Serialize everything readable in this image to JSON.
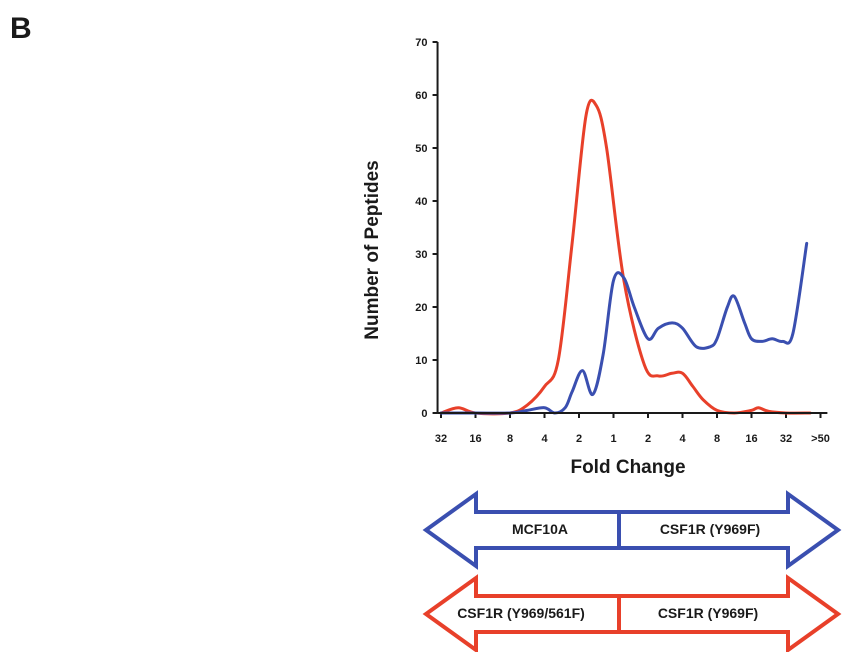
{
  "panel_label": "B",
  "colors": {
    "blue": "#3a4fb0",
    "red": "#e8402a",
    "axis": "#1a1a1a"
  },
  "chart_data": {
    "type": "line",
    "xlabel": "Fold Change",
    "ylabel": "Number of Peptides",
    "x_tick_labels": [
      "32",
      "16",
      "8",
      "4",
      "2",
      "1",
      "2",
      "4",
      "8",
      "16",
      "32",
      ">50"
    ],
    "x_tick_positions": [
      0,
      1,
      2,
      3,
      4,
      5,
      6,
      7,
      8,
      9,
      10,
      11
    ],
    "xlim": [
      -0.1,
      11.2
    ],
    "ylim": [
      0,
      70
    ],
    "y_ticks": [
      0,
      10,
      20,
      30,
      40,
      50,
      60,
      70
    ],
    "grid": false,
    "series": [
      {
        "color": "red",
        "x": [
          0.0,
          0.5,
          1.0,
          2.0,
          2.5,
          3.0,
          3.4,
          3.8,
          4.2,
          4.5,
          4.8,
          5.3,
          5.9,
          6.3,
          6.7,
          7.0,
          7.3,
          7.6,
          8.0,
          8.5,
          9.0,
          9.2,
          9.5,
          10.0,
          10.7
        ],
        "y": [
          0,
          1,
          0,
          0,
          1.5,
          5,
          10,
          32,
          56,
          58,
          50,
          25,
          9,
          7,
          7.5,
          7.5,
          5,
          2.5,
          0.5,
          0,
          0.5,
          1,
          0.3,
          0,
          0
        ]
      },
      {
        "color": "blue",
        "x": [
          0.0,
          1.0,
          2.0,
          2.5,
          3.0,
          3.3,
          3.6,
          3.8,
          4.1,
          4.4,
          4.7,
          5.0,
          5.3,
          5.6,
          6.0,
          6.3,
          6.7,
          7.0,
          7.4,
          7.8,
          8.0,
          8.3,
          8.5,
          8.8,
          9.0,
          9.3,
          9.6,
          9.9,
          10.2,
          10.6
        ],
        "y": [
          0,
          0,
          0,
          0.5,
          1,
          0,
          1,
          4,
          8,
          3.5,
          11,
          25,
          25.5,
          20,
          14,
          16,
          17,
          16,
          12.5,
          12.5,
          14,
          20,
          22,
          17,
          14,
          13.5,
          14,
          13.5,
          15,
          32
        ]
      }
    ],
    "arrows": [
      {
        "color": "blue",
        "left_label": "MCF10A",
        "right_label": "CSF1R (Y969F)"
      },
      {
        "color": "red",
        "left_label": "CSF1R (Y969/561F)",
        "right_label": "CSF1R (Y969F)"
      }
    ]
  }
}
